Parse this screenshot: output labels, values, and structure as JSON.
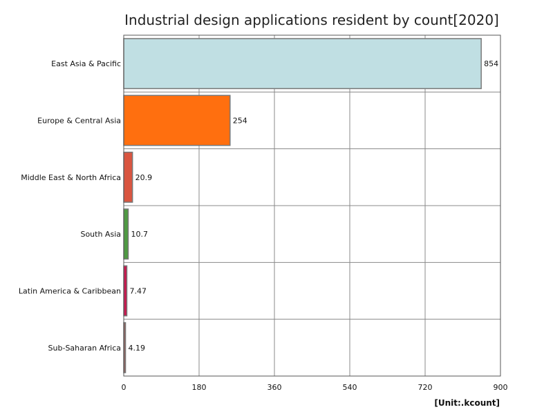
{
  "chart_data": {
    "type": "bar",
    "orientation": "horizontal",
    "title": "Industrial design applications resident by count[2020]",
    "unit": "[Unit:.kcount]",
    "categories": [
      "East Asia & Pacific",
      "Europe & Central Asia",
      "Middle East & North Africa",
      "South Asia",
      "Latin America & Caribbean",
      "Sub-Saharan Africa"
    ],
    "values": [
      854,
      254,
      20.9,
      10.7,
      7.47,
      4.19
    ],
    "value_labels": [
      "854",
      "254",
      "20.9",
      "10.7",
      "7.47",
      "4.19"
    ],
    "colors": [
      "#c0dfe3",
      "#ff6f0f",
      "#d95540",
      "#4f9a42",
      "#c8174e",
      "#9a6560"
    ],
    "xlim": [
      0,
      900
    ],
    "xticks": [
      0,
      180,
      360,
      540,
      720,
      900
    ],
    "grid": true
  }
}
